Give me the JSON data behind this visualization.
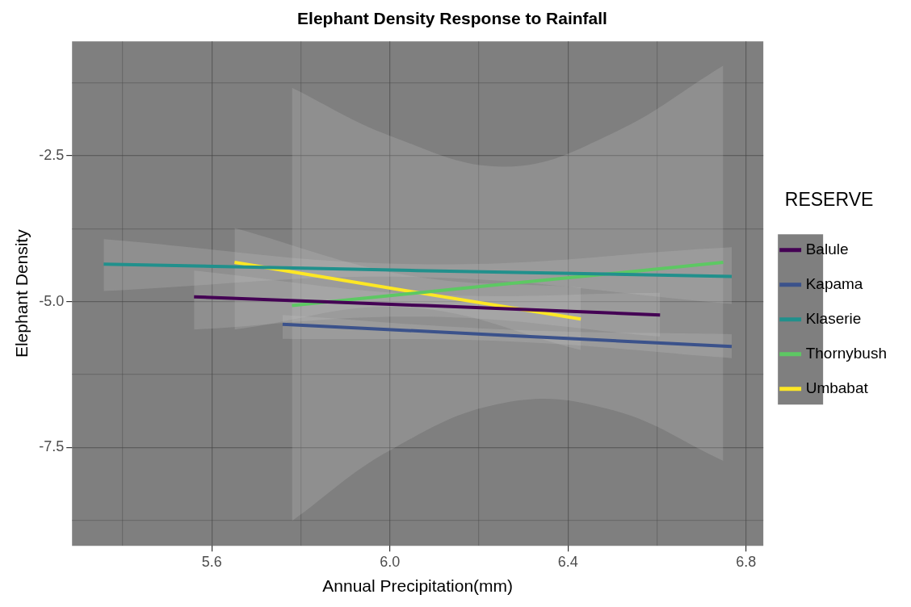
{
  "chart_data": {
    "type": "line",
    "title": "Elephant Density Response to Rainfall",
    "xlabel": "Annual Precipitation(mm)",
    "ylabel": "Elephant Density",
    "legend_title": "RESERVE",
    "legend": "right",
    "grid": true,
    "line_style": "solid",
    "marker": "none",
    "xlim": [
      5.286,
      6.839
    ],
    "xticks": [
      {
        "value": 5.4,
        "label": null
      },
      5.6,
      {
        "value": 5.8,
        "label": null
      },
      {
        "value": 6,
        "label": "6.0"
      },
      {
        "value": 6.2,
        "label": null
      },
      6.4,
      {
        "value": 6.6,
        "label": null
      },
      6.8
    ],
    "ylim": [
      -9.185,
      -0.543
    ],
    "yticks": [
      {
        "value": -8.75,
        "label": null
      },
      -7.5,
      {
        "value": -6.25,
        "label": null
      },
      {
        "value": -5,
        "label": "-5.0"
      },
      {
        "value": -3.75,
        "label": null
      },
      -2.5,
      {
        "value": -1.25,
        "label": null
      }
    ],
    "series": [
      {
        "name": "Balule",
        "color": "#440154",
        "x": [
          5.56,
          6.08,
          6.607
        ],
        "values": [
          -4.92,
          -5.07,
          -5.23
        ],
        "lower": [
          -5.48,
          -5.26,
          -5.6
        ],
        "upper": [
          -4.47,
          -4.88,
          -4.85
        ]
      },
      {
        "name": "Kapama",
        "color": "#3b528b",
        "x": [
          5.759,
          6.26,
          6.768
        ],
        "values": [
          -5.39,
          -5.58,
          -5.77
        ],
        "lower": [
          -5.64,
          -5.68,
          -5.97
        ],
        "upper": [
          -5.23,
          -5.48,
          -5.56
        ]
      },
      {
        "name": "Klaserie",
        "color": "#21908c",
        "x": [
          5.357,
          6.06,
          6.768
        ],
        "values": [
          -4.36,
          -4.47,
          -4.57
        ],
        "lower": [
          -4.82,
          -4.58,
          -5.04
        ],
        "upper": [
          -3.93,
          -4.36,
          -4.07
        ]
      },
      {
        "name": "Thornybush",
        "color": "#5dc863",
        "x": [
          5.78,
          6.0,
          6.26,
          6.5,
          6.749
        ],
        "values": [
          -5.07,
          -4.9,
          -4.7,
          -4.52,
          -4.33
        ],
        "lower": [
          -8.76,
          -7.55,
          -6.73,
          -6.86,
          -7.73
        ],
        "upper": [
          -1.34,
          -2.16,
          -2.69,
          -2.12,
          -0.96
        ]
      },
      {
        "name": "Umbabat",
        "color": "#fde725",
        "x": [
          5.651,
          6.04,
          6.429
        ],
        "values": [
          -4.33,
          -4.82,
          -5.3
        ],
        "lower": [
          -5.48,
          -5.1,
          -5.83
        ],
        "upper": [
          -3.74,
          -4.55,
          -4.76
        ]
      }
    ]
  }
}
